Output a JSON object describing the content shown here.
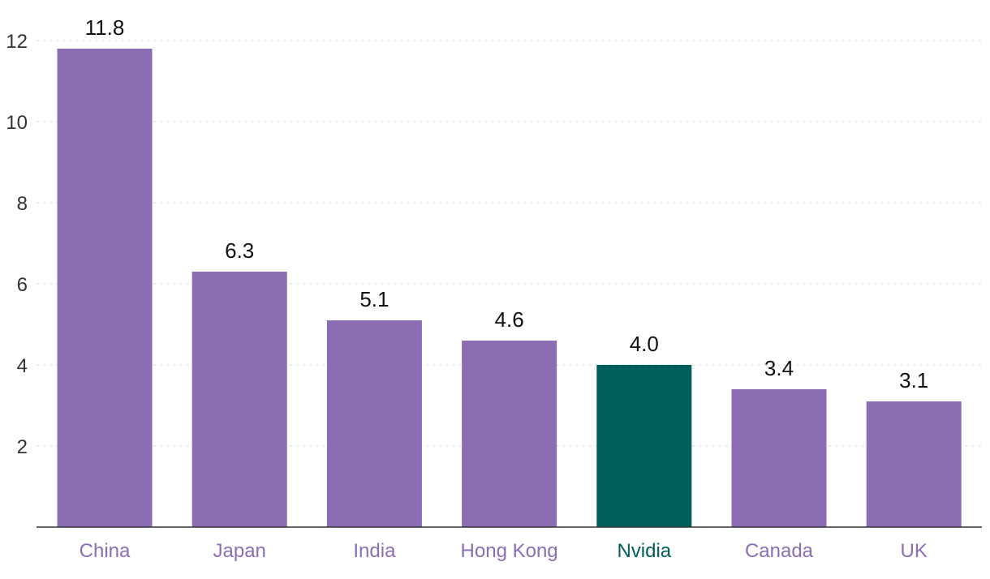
{
  "chart_data": {
    "type": "bar",
    "title": "",
    "xlabel": "",
    "ylabel": "",
    "categories": [
      "China",
      "Japan",
      "India",
      "Hong Kong",
      "Nvidia",
      "Canada",
      "UK"
    ],
    "values": [
      11.8,
      6.3,
      5.1,
      4.6,
      4.0,
      3.4,
      3.1
    ],
    "value_labels": [
      "11.8",
      "6.3",
      "5.1",
      "4.6",
      "4.0",
      "3.4",
      "3.1"
    ],
    "highlight_category": "Nvidia",
    "ylim": [
      0,
      12
    ],
    "y_ticks": [
      2,
      4,
      6,
      8,
      10,
      12
    ],
    "y_tick_labels": [
      "2",
      "4",
      "6",
      "8",
      "10",
      "12"
    ],
    "grid": true,
    "colors": {
      "bar": "#8b6db4",
      "highlight_bar": "#005e5b",
      "label": "#8b6db4",
      "highlight_label": "#005e5b"
    }
  }
}
